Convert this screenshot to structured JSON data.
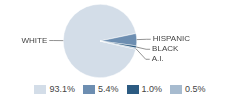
{
  "chart_data": {
    "type": "pie",
    "categories": [
      "WHITE",
      "HISPANIC",
      "BLACK",
      "A.I."
    ],
    "values": [
      93.1,
      5.4,
      1.0,
      0.5
    ],
    "value_labels": [
      "93.1%",
      "5.4%",
      "1.0%",
      "0.5%"
    ],
    "colors": [
      "#d3dde8",
      "#6d8eb1",
      "#2c5b82",
      "#a7bbcf"
    ]
  }
}
